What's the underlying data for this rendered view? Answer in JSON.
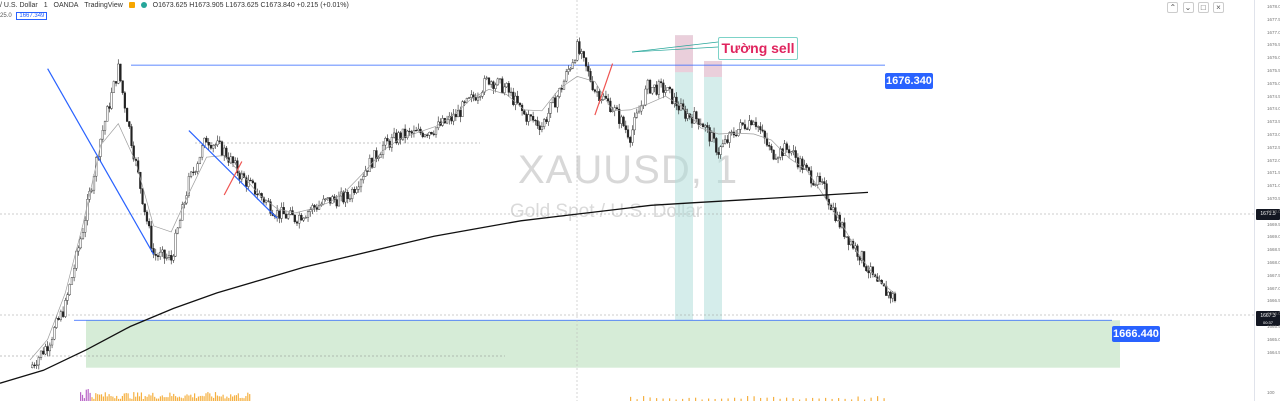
{
  "header": {
    "symbol": "/ U.S. Dollar",
    "interval": "1",
    "exchange": "OANDA",
    "source": "TradingView",
    "ohlc": "O1673.625 H1673.905 L1673.625 C1673.840 +0.215 (+0.01%)",
    "indicator_prefix": "25.0",
    "indicator_value": "1667.349"
  },
  "watermark": {
    "symbol": "XAUUSD, 1",
    "description": "Gold Spot / U.S. Dollar"
  },
  "annotation": {
    "label": "Tường sell",
    "text_color": "#e0245e",
    "border_color": "#7dd3c8"
  },
  "levels": [
    {
      "label": "1676.340",
      "value": 1676.34
    },
    {
      "label": "1666.440",
      "value": 1666.44
    }
  ],
  "price_axis": {
    "ticks": [
      "1678.0",
      "1677.5",
      "1677.0",
      "1676.5",
      "1676.0",
      "1675.5",
      "1675.0",
      "1674.5",
      "1674.0",
      "1673.5",
      "1673.0",
      "1672.5",
      "1672.0",
      "1671.5",
      "1671.0",
      "1670.5",
      "1670.0",
      "1669.5",
      "1669.0",
      "1668.5",
      "1668.0",
      "1667.5",
      "1667.0",
      "1666.5",
      "1666.0",
      "1665.5",
      "1665.0",
      "1664.5"
    ],
    "current_price": "1671.5",
    "last_price": "1667.3",
    "last_countdown": "00:37",
    "indicator_axis_label": "100"
  },
  "colors": {
    "accent": "#2962ff",
    "up": "#26a69a",
    "down": "#ef5350",
    "zone": "#c8e6c9"
  },
  "chart_data": {
    "type": "candlestick",
    "symbol": "XAUUSD",
    "interval": "1",
    "ylim": [
      1664.2,
      1678.4
    ],
    "grid": false,
    "price_path": [
      1664.6,
      1665.5,
      1667.0,
      1670.0,
      1673.5,
      1676.2,
      1672.5,
      1669.0,
      1668.8,
      1671.8,
      1673.5,
      1673.0,
      1672.0,
      1671.3,
      1670.6,
      1670.4,
      1670.8,
      1671.1,
      1671.2,
      1672.3,
      1673.2,
      1673.6,
      1673.7,
      1673.9,
      1674.3,
      1675.0,
      1675.8,
      1675.4,
      1674.4,
      1674.0,
      1675.3,
      1677.0,
      1675.4,
      1674.7,
      1673.6,
      1675.5,
      1675.4,
      1674.5,
      1674.2,
      1673.0,
      1673.8,
      1674.3,
      1672.9,
      1673.1,
      1672.2,
      1671.5,
      1670.0,
      1669.0,
      1667.8,
      1667.3
    ],
    "sma_path": [
      1664.0,
      1664.5,
      1665.3,
      1666.2,
      1666.9,
      1667.5,
      1668.0,
      1668.5,
      1668.9,
      1669.3,
      1669.7,
      1670.0,
      1670.3,
      1670.5,
      1670.7,
      1670.9,
      1671.0,
      1671.1,
      1671.2,
      1671.3,
      1671.4
    ],
    "trendlines": [
      {
        "style": "solid",
        "color": "#2962ff",
        "from": [
          1,
          1676.2
        ],
        "to": [
          7,
          1669.0
        ]
      },
      {
        "style": "solid",
        "color": "#2962ff",
        "from": [
          9,
          1673.8
        ],
        "to": [
          14,
          1670.4
        ]
      },
      {
        "style": "solid",
        "color": "#ef5350",
        "from": [
          11,
          1671.3
        ],
        "to": [
          12,
          1672.6
        ]
      },
      {
        "style": "solid",
        "color": "#ef5350",
        "from": [
          32,
          1674.4
        ],
        "to": [
          33,
          1676.4
        ]
      }
    ],
    "zones": [
      {
        "type": "demand",
        "top": 1666.44,
        "bottom": 1664.6
      },
      {
        "type": "supply-1",
        "top": 1677.5,
        "bottom": 1666.45
      },
      {
        "type": "supply-2",
        "top": 1676.5,
        "bottom": 1666.45
      }
    ]
  }
}
